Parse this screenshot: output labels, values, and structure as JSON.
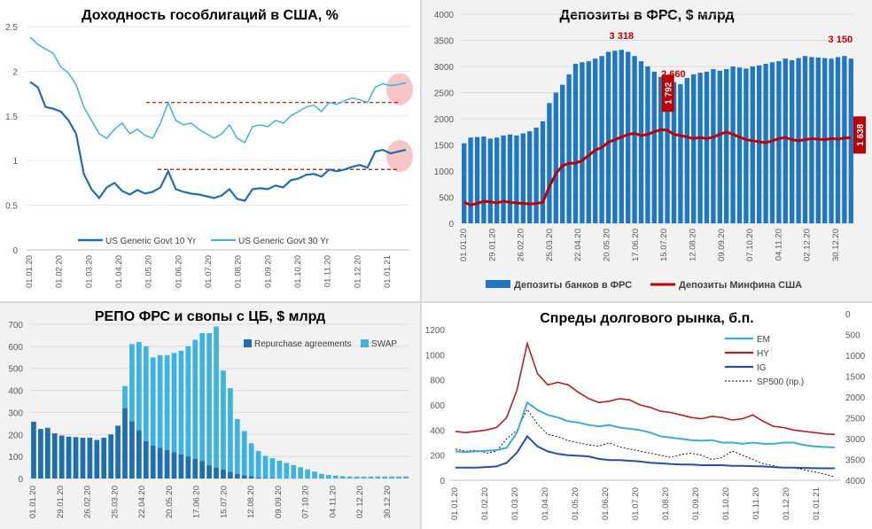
{
  "chart_data": [
    {
      "id": "yields",
      "type": "line",
      "title": "Доходность гособлигаций в США, %",
      "ylim": [
        0,
        2.5
      ],
      "yticks": [
        "0",
        "0.5",
        "1",
        "1.5",
        "2",
        "2.5"
      ],
      "xticks": [
        "01.01.20",
        "01.02.20",
        "01.03.20",
        "01.04.20",
        "01.05.20",
        "01.06.20",
        "01.07.20",
        "01.08.20",
        "01.09.20",
        "01.10.20",
        "01.11.20",
        "01.12.20",
        "01.01.21"
      ],
      "reference_lines": [
        1.65,
        0.9
      ],
      "colors": {
        "y10": "#1f6fae",
        "y30": "#3fb3e0",
        "ref": "#c00000",
        "highlight": "#f4b6b6"
      },
      "series": [
        {
          "name": "US Generic Govt 10 Yr",
          "values": [
            1.88,
            1.82,
            1.6,
            1.58,
            1.55,
            1.45,
            1.3,
            0.85,
            0.68,
            0.58,
            0.7,
            0.75,
            0.66,
            0.62,
            0.67,
            0.63,
            0.65,
            0.7,
            0.88,
            0.68,
            0.65,
            0.63,
            0.62,
            0.6,
            0.58,
            0.61,
            0.68,
            0.57,
            0.55,
            0.68,
            0.69,
            0.68,
            0.72,
            0.7,
            0.78,
            0.8,
            0.84,
            0.85,
            0.82,
            0.9,
            0.88,
            0.9,
            0.93,
            0.95,
            0.92,
            1.1,
            1.12,
            1.08,
            1.1,
            1.12
          ]
        },
        {
          "name": "US Generic Govt 30 Yr",
          "values": [
            2.38,
            2.3,
            2.25,
            2.2,
            2.05,
            1.98,
            1.85,
            1.6,
            1.45,
            1.3,
            1.25,
            1.35,
            1.42,
            1.3,
            1.35,
            1.28,
            1.25,
            1.42,
            1.65,
            1.45,
            1.4,
            1.42,
            1.35,
            1.3,
            1.25,
            1.3,
            1.4,
            1.25,
            1.2,
            1.38,
            1.4,
            1.38,
            1.45,
            1.42,
            1.5,
            1.55,
            1.6,
            1.62,
            1.55,
            1.65,
            1.63,
            1.67,
            1.7,
            1.68,
            1.65,
            1.82,
            1.86,
            1.84,
            1.85,
            1.87
          ]
        }
      ]
    },
    {
      "id": "deposits",
      "type": "bar",
      "title": "Депозиты в ФРС, $ млрд",
      "ylim": [
        0,
        4000
      ],
      "yticks": [
        "0",
        "500",
        "1000",
        "1500",
        "2000",
        "2500",
        "3000",
        "3500",
        "4000"
      ],
      "xticks": [
        "01.01.20",
        "29.01.20",
        "26.02.20",
        "25.03.20",
        "22.04.20",
        "20.05.20",
        "17.06.20",
        "15.07.20",
        "12.08.20",
        "09.09.20",
        "07.10.20",
        "04.11.20",
        "02.12.20",
        "30.12.20"
      ],
      "colors": {
        "bank": "#1f77c4",
        "treasury": "#c00000",
        "annot": "#c00000"
      },
      "series": [
        {
          "name": "Депозиты банков в ФРС",
          "values": [
            1530,
            1640,
            1650,
            1660,
            1620,
            1640,
            1680,
            1700,
            1680,
            1720,
            1760,
            1830,
            1950,
            2300,
            2500,
            2650,
            2850,
            3050,
            3080,
            3100,
            3150,
            3200,
            3280,
            3300,
            3318,
            3280,
            3200,
            3100,
            3000,
            2900,
            2800,
            2750,
            2700,
            2660,
            2780,
            2850,
            2880,
            2900,
            2950,
            2920,
            2950,
            3000,
            2980,
            2960,
            3000,
            3020,
            3050,
            3080,
            3100,
            3150,
            3120,
            3160,
            3200,
            3180,
            3170,
            3160,
            3150,
            3180,
            3200,
            3150
          ]
        },
        {
          "name": "Депозиты Минфина США",
          "values": [
            400,
            350,
            380,
            420,
            410,
            390,
            420,
            400,
            390,
            380,
            370,
            380,
            400,
            700,
            950,
            1100,
            1150,
            1150,
            1200,
            1300,
            1400,
            1450,
            1550,
            1600,
            1650,
            1700,
            1720,
            1680,
            1700,
            1750,
            1792,
            1780,
            1700,
            1680,
            1650,
            1620,
            1640,
            1620,
            1650,
            1700,
            1750,
            1700,
            1650,
            1600,
            1580,
            1560,
            1540,
            1580,
            1620,
            1640,
            1600,
            1580,
            1600,
            1620,
            1610,
            1600,
            1620,
            1610,
            1630,
            1638
          ]
        }
      ],
      "annotations": [
        {
          "label": "3 318",
          "index": 24,
          "value": 3318
        },
        {
          "label": "2 660",
          "index": 33,
          "value": 2660
        },
        {
          "label": "3 150",
          "index": 59,
          "value": 3150
        },
        {
          "label": "1 792",
          "index": 30,
          "value": 1792
        },
        {
          "label": "1 638",
          "index": 59,
          "value": 1638
        }
      ]
    },
    {
      "id": "repo",
      "type": "bar",
      "title": "РЕПО ФРС и свопы с ЦБ, $ млрд",
      "ylim": [
        0,
        700
      ],
      "yticks": [
        "0",
        "100",
        "200",
        "300",
        "400",
        "500",
        "600",
        "700"
      ],
      "xticks": [
        "01.01.20",
        "29.01.20",
        "26.02.20",
        "25.03.20",
        "22.04.20",
        "20.05.20",
        "17.06.20",
        "15.07.20",
        "12.08.20",
        "09.09.20",
        "07.10.20",
        "04.11.20",
        "02.12.20",
        "30.12.20"
      ],
      "colors": {
        "repo": "#1f6fae",
        "swap": "#3fb3e0"
      },
      "series": [
        {
          "name": "Repurchase agreements",
          "values": [
            258,
            225,
            230,
            205,
            195,
            190,
            188,
            185,
            185,
            175,
            185,
            200,
            240,
            320,
            260,
            220,
            170,
            150,
            140,
            130,
            120,
            110,
            100,
            90,
            80,
            60,
            50,
            40,
            30,
            20,
            15,
            10,
            5,
            3,
            2,
            1,
            1,
            1,
            1,
            1,
            1,
            1,
            1,
            1,
            1,
            1,
            1,
            1,
            1,
            1,
            1,
            1,
            1,
            1
          ]
        },
        {
          "name": "SWAP",
          "values": [
            0,
            0,
            0,
            0,
            0,
            0,
            0,
            0,
            0,
            0,
            0,
            0,
            0,
            100,
            350,
            400,
            430,
            400,
            420,
            430,
            450,
            470,
            500,
            540,
            580,
            600,
            640,
            450,
            380,
            250,
            200,
            150,
            120,
            100,
            90,
            80,
            70,
            60,
            50,
            40,
            30,
            20,
            15,
            12,
            10,
            8,
            8,
            8,
            8,
            8,
            8,
            8,
            8,
            8
          ]
        }
      ]
    },
    {
      "id": "spreads",
      "type": "line",
      "title": "Спреды долгового рынка, б.п.",
      "ylim": [
        0,
        1200
      ],
      "yticks": [
        "0",
        "200",
        "400",
        "600",
        "800",
        "1000",
        "1200"
      ],
      "y2lim": [
        4000,
        0
      ],
      "y2ticks": [
        "0",
        "500",
        "1000",
        "1500",
        "2000",
        "2500",
        "3000",
        "3500",
        "4000"
      ],
      "xticks": [
        "01.01.20",
        "01.02.20",
        "01.03.20",
        "01.04.20",
        "01.05.20",
        "01.06.20",
        "01.07.20",
        "01.08.20",
        "01.09.20",
        "01.10.20",
        "01.11.20",
        "01.12.20",
        "01.01.21"
      ],
      "colors": {
        "EM": "#3fa9d9",
        "HY": "#b22222",
        "IG": "#2a4f9e",
        "SP500": "#000000"
      },
      "series": [
        {
          "name": "EM",
          "values": [
            230,
            225,
            230,
            235,
            240,
            260,
            380,
            620,
            560,
            520,
            500,
            470,
            460,
            440,
            430,
            440,
            420,
            410,
            400,
            380,
            350,
            340,
            330,
            320,
            315,
            320,
            300,
            300,
            290,
            300,
            290,
            290,
            300,
            300,
            280,
            270,
            265,
            262
          ]
        },
        {
          "name": "HY",
          "values": [
            390,
            380,
            390,
            400,
            420,
            500,
            720,
            1090,
            850,
            760,
            780,
            760,
            700,
            650,
            620,
            630,
            650,
            640,
            600,
            580,
            550,
            540,
            520,
            500,
            490,
            510,
            500,
            480,
            490,
            520,
            470,
            430,
            420,
            400,
            390,
            380,
            370,
            365
          ]
        },
        {
          "name": "IG",
          "values": [
            100,
            100,
            100,
            105,
            110,
            140,
            220,
            350,
            270,
            230,
            210,
            200,
            195,
            190,
            170,
            160,
            160,
            155,
            150,
            140,
            135,
            130,
            125,
            125,
            120,
            120,
            120,
            115,
            115,
            112,
            110,
            105,
            100,
            100,
            98,
            96,
            95,
            95
          ]
        },
        {
          "name": "SP500 (пр.)",
          "values": [
            3250,
            3300,
            3280,
            3350,
            3300,
            3000,
            2800,
            2300,
            2650,
            2900,
            2950,
            3050,
            3100,
            3150,
            3180,
            3100,
            3200,
            3250,
            3300,
            3350,
            3400,
            3450,
            3380,
            3350,
            3400,
            3500,
            3450,
            3300,
            3400,
            3500,
            3600,
            3650,
            3700,
            3700,
            3750,
            3800,
            3850,
            3920
          ]
        }
      ]
    }
  ]
}
